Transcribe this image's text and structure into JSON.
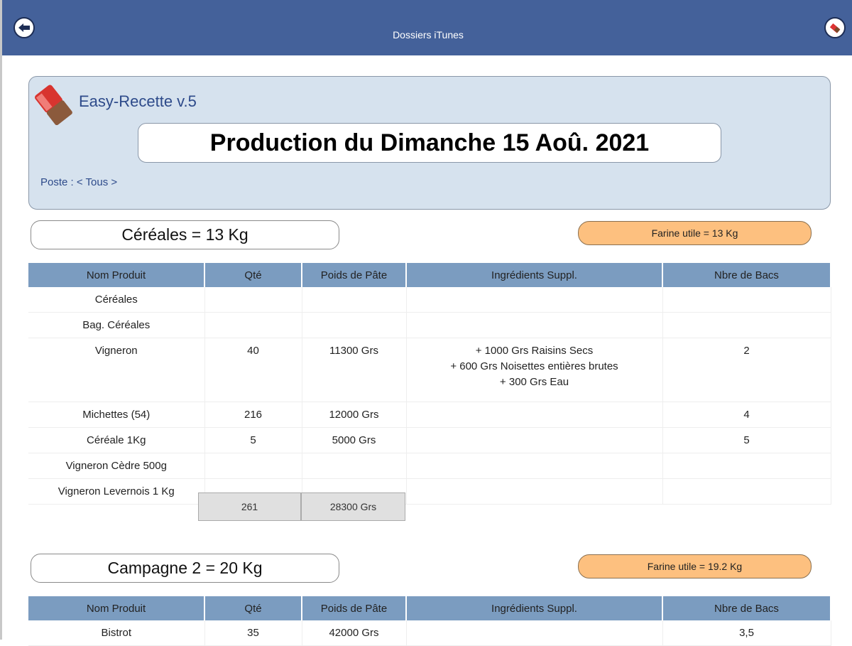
{
  "header": {
    "title": "Dossiers iTunes",
    "back_icon": "arrow-left-icon",
    "right_icon": "eraser-icon",
    "color": "#44619a"
  },
  "app": {
    "name": "Easy-Recette v.5",
    "title": "Production du Dimanche 15 Aoû. 2021",
    "poste": "Poste : < Tous >"
  },
  "columns": [
    "Nom Produit",
    "Qté",
    "Poids de Pâte",
    "Ingrédients Suppl.",
    "Nbre de Bacs"
  ],
  "sections": [
    {
      "label": "Céréales = 13 Kg",
      "farine": "Farine utile = 13 Kg",
      "rows": [
        [
          "Céréales",
          "",
          "",
          "",
          ""
        ],
        [
          "Bag. Céréales",
          "",
          "",
          "",
          ""
        ],
        [
          "Vigneron",
          "40",
          "11300 Grs",
          "+ 1000 Grs Raisins Secs\n+ 600 Grs Noisettes entières brutes\n+ 300 Grs Eau",
          "2"
        ],
        [
          "Michettes (54)",
          "216",
          "12000 Grs",
          "",
          "4"
        ],
        [
          "Céréale 1Kg",
          "5",
          "5000 Grs",
          "",
          "5"
        ],
        [
          "Vigneron Cèdre 500g",
          "",
          "",
          "",
          ""
        ],
        [
          "Vigneron Levernois 1 Kg",
          "",
          "",
          "",
          ""
        ]
      ],
      "total_qty": "261",
      "total_weight": "28300 Grs"
    },
    {
      "label": "Campagne 2 = 20 Kg",
      "farine": "Farine utile = 19.2 Kg",
      "rows": [
        [
          "Bistrot",
          "35",
          "42000 Grs",
          "",
          "3,5"
        ]
      ]
    }
  ]
}
